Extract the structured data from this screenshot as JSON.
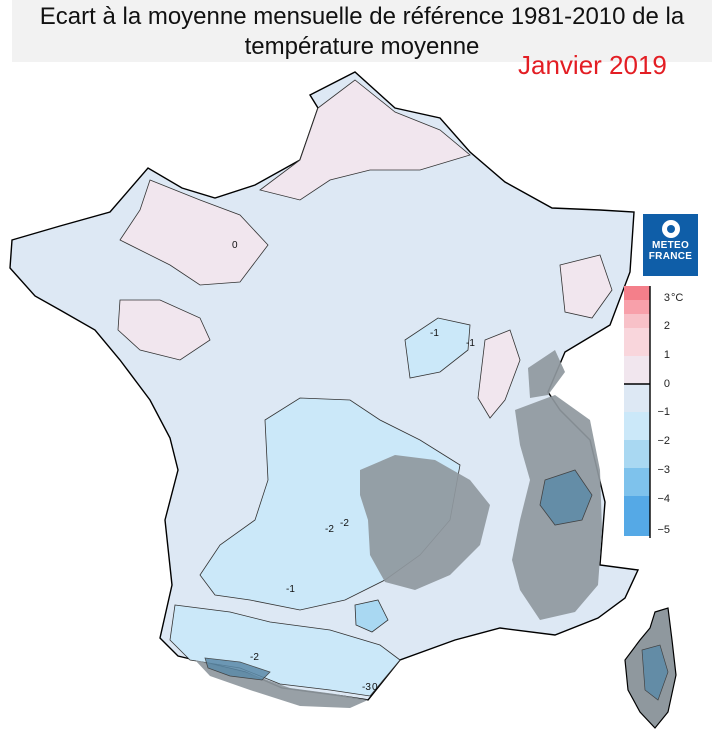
{
  "title": "Ecart à la moyenne mensuelle de référence 1981-2010 de la température moyenne",
  "subtitle": "Janvier 2019",
  "logo": {
    "line1": "METEO",
    "line2": "FRANCE"
  },
  "legend": {
    "unit": "°C",
    "ticks": [
      "3",
      "2",
      "1",
      "0",
      "−1",
      "−2",
      "−3",
      "−4",
      "−5"
    ],
    "colors": [
      "#f47f8a",
      "#f8b0b8",
      "#f9d6dc",
      "#f1e6ee",
      "#dde8f4",
      "#cbe8f9",
      "#a9d8f2",
      "#7ec2ec",
      "#55a9e6"
    ]
  },
  "map_labels": [
    {
      "text": "0"
    },
    {
      "text": "-1"
    },
    {
      "text": "-1"
    },
    {
      "text": "-2"
    },
    {
      "text": "-2"
    },
    {
      "text": "-1"
    },
    {
      "text": "-2"
    },
    {
      "text": "-3"
    },
    {
      "text": "0"
    }
  ],
  "colors": {
    "mountain": "#8f989e",
    "pos_anomaly": "#f1e6ee",
    "neg_anomaly_light": "#dde8f4",
    "neg_anomaly": "#cbe8f9",
    "neg_anomaly_strong": "#5c8aa8"
  }
}
